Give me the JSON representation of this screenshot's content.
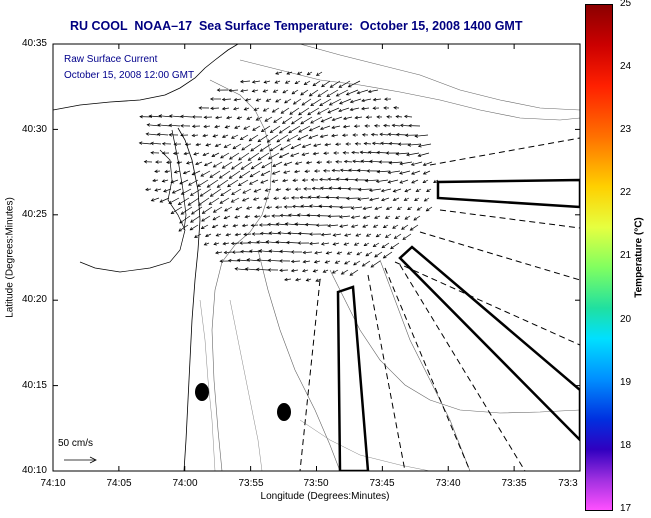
{
  "title": "RU COOL  NOAA–17  Sea Surface Temperature:  October 15, 2008 1400 GMT",
  "overlay": {
    "line1": "Raw Surface Current",
    "line2": "October 15, 2008 12:00 GMT"
  },
  "axes": {
    "xlabel": "Longitude (Degrees:Minutes)",
    "ylabel": "Latitude (Degrees:Minutes)",
    "xticks": [
      "74:10",
      "74:05",
      "74:00",
      "73:55",
      "73:50",
      "73:45",
      "73:40",
      "73:35",
      "73:3"
    ],
    "yticks": [
      "40:35",
      "40:30",
      "40:25",
      "40:20",
      "40:15",
      "40:10"
    ]
  },
  "colorbar": {
    "label": "Temperature (°C)",
    "ticks": [
      "25",
      "24",
      "23",
      "22",
      "21",
      "20",
      "19",
      "18",
      "17"
    ],
    "min": 17,
    "max": 25
  },
  "scale": {
    "label": "50 cm/s"
  },
  "colors": {
    "title": "#000080",
    "overlay": "#00008b"
  }
}
